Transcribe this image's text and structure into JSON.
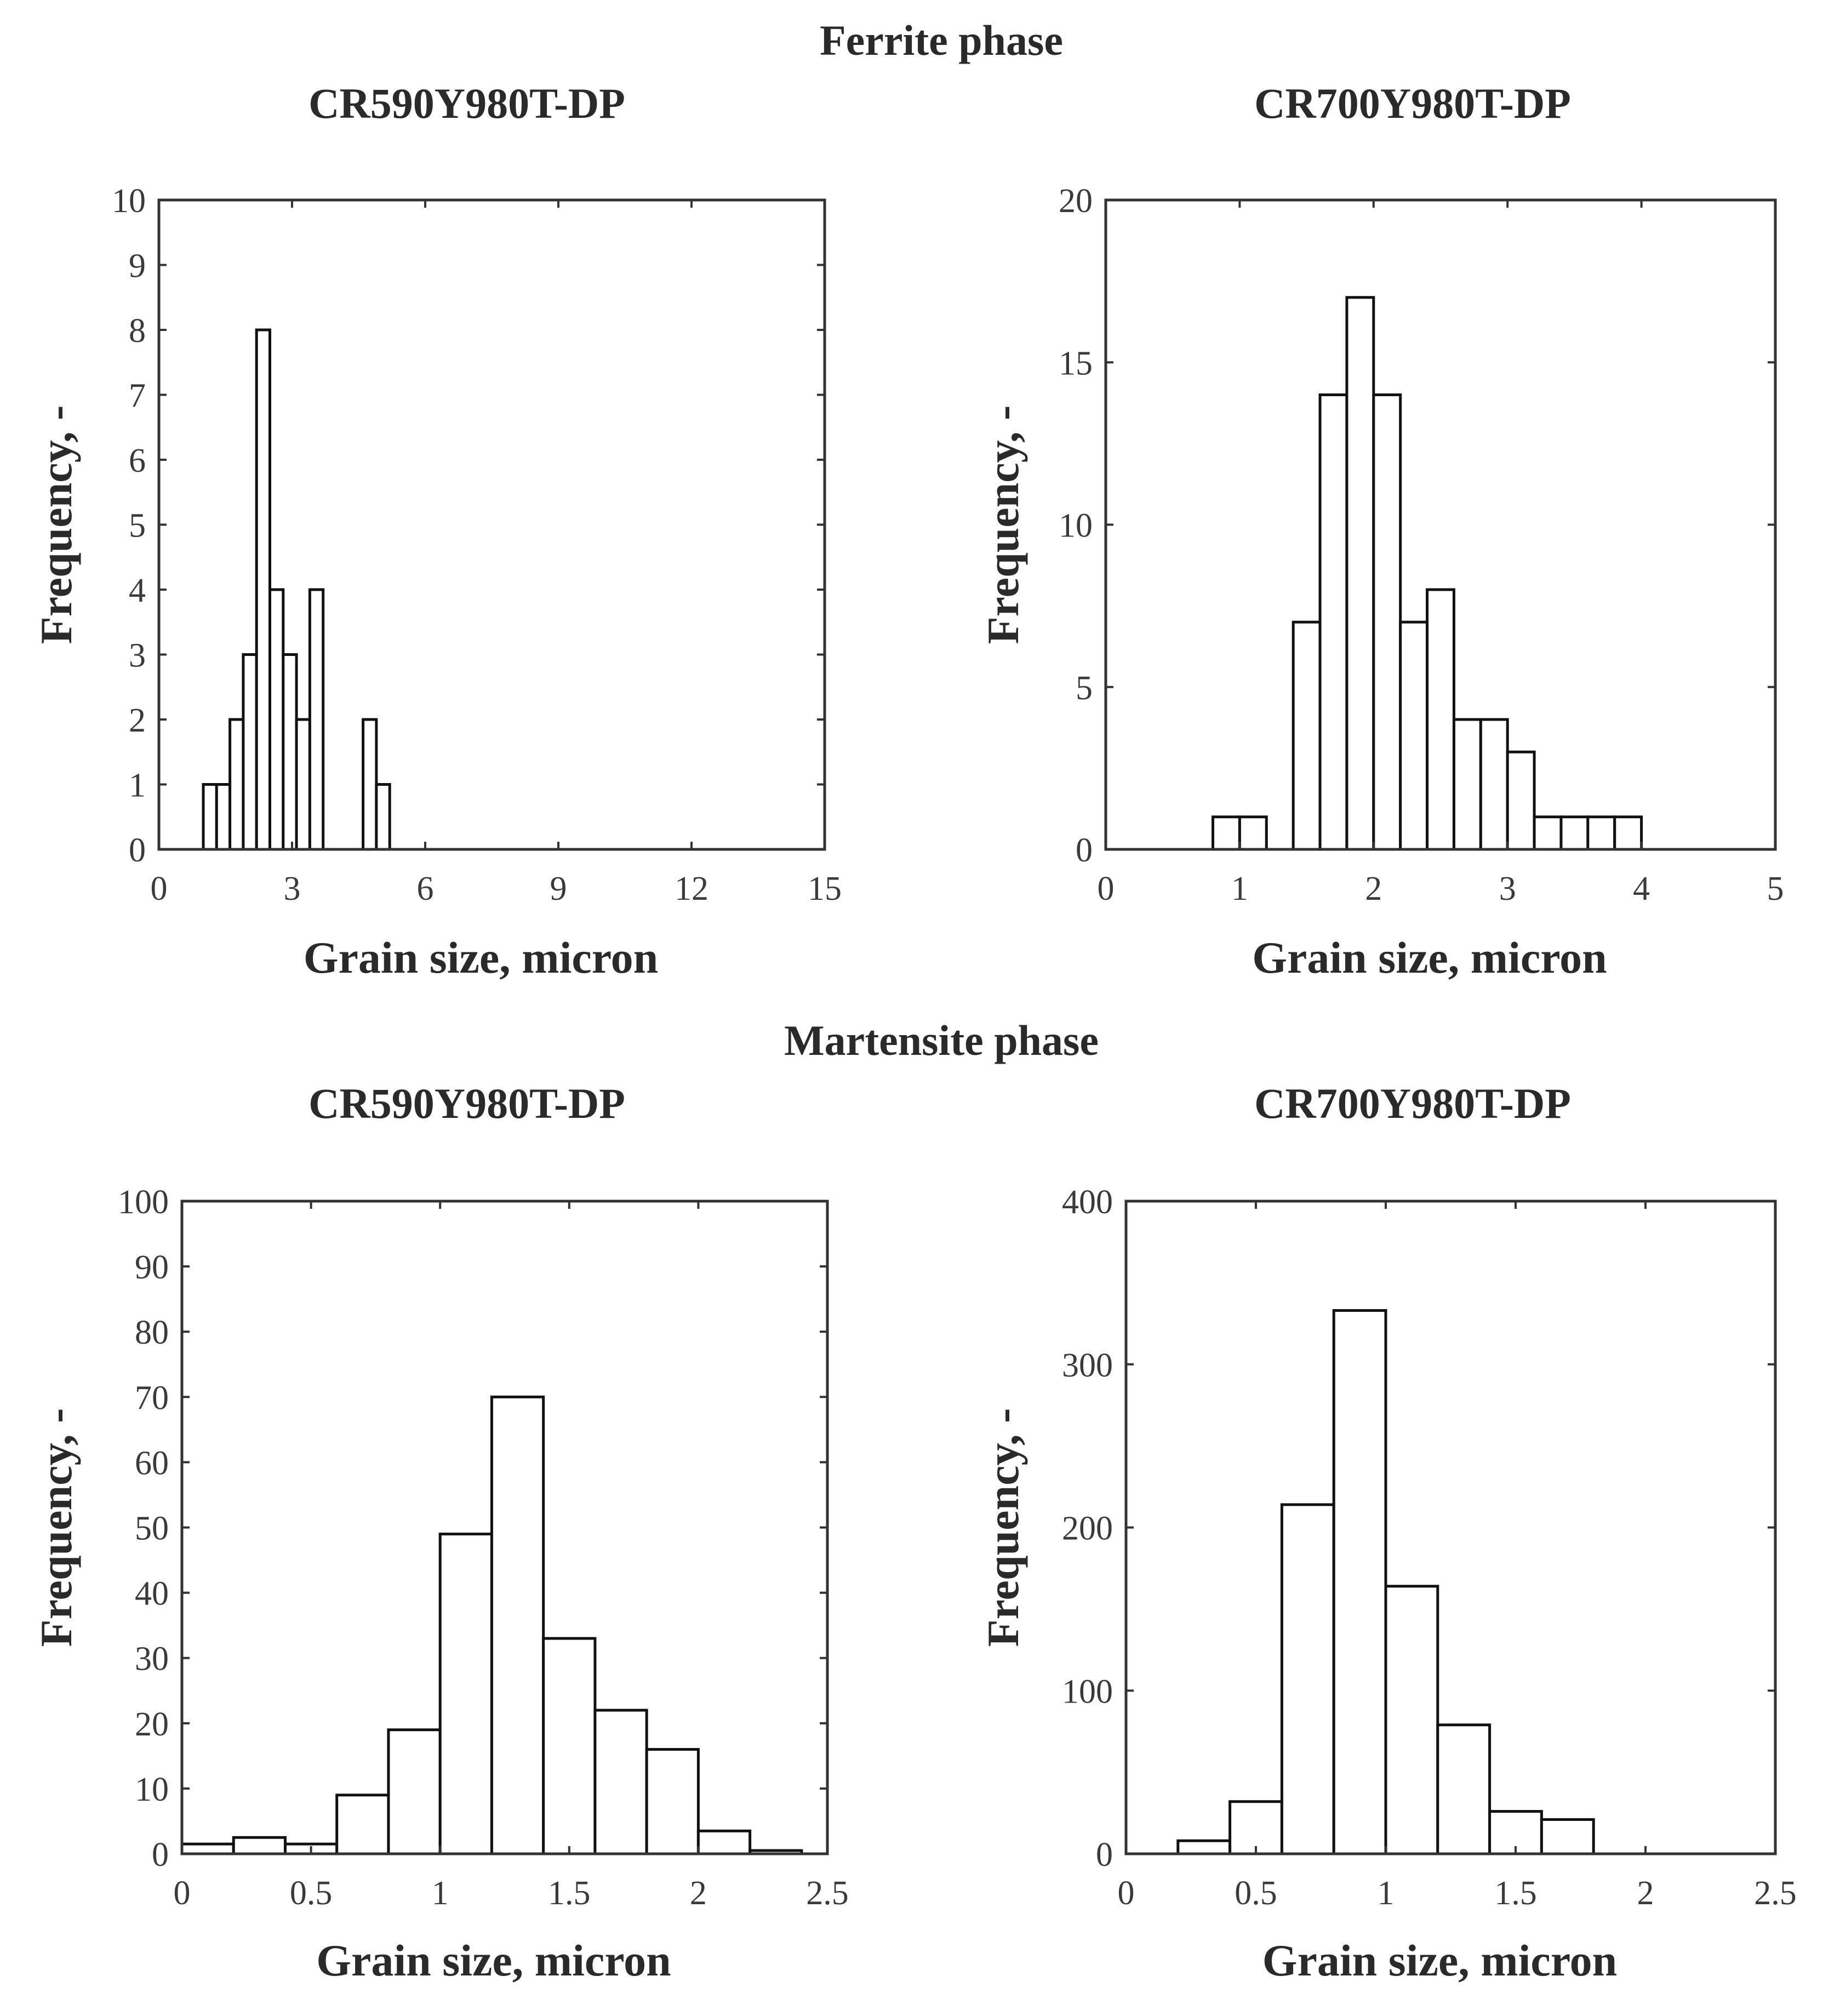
{
  "sections": {
    "ferrite_title": "Ferrite phase",
    "martensite_title": "Martensite phase"
  },
  "chart_data": [
    {
      "type": "bar",
      "id": "ferrite-cr590",
      "section": "Ferrite phase",
      "title": "CR590Y980T-DP",
      "xlabel": "Grain size, micron",
      "ylabel": "Frequency, -",
      "xlim": [
        0,
        15
      ],
      "ylim": [
        0,
        10
      ],
      "xticks": [
        "0",
        "3",
        "6",
        "9",
        "12",
        "15"
      ],
      "yticks": [
        "0",
        "1",
        "2",
        "3",
        "4",
        "5",
        "6",
        "7",
        "8",
        "9",
        "10"
      ],
      "xtick_values": [
        0,
        3,
        6,
        9,
        12,
        15
      ],
      "ytick_values": [
        0,
        1,
        2,
        3,
        4,
        5,
        6,
        7,
        8,
        9,
        10
      ],
      "bin_width": 0.3,
      "bin_starts": [
        1.0,
        1.3,
        1.6,
        1.9,
        2.2,
        2.5,
        2.8,
        3.1,
        3.4,
        4.6,
        4.9
      ],
      "values": [
        1,
        1,
        2,
        3,
        8,
        4,
        3,
        2,
        4,
        2,
        1
      ],
      "grid": false
    },
    {
      "type": "bar",
      "id": "ferrite-cr700",
      "section": "Ferrite phase",
      "title": "CR700Y980T-DP",
      "xlabel": "Grain size, micron",
      "ylabel": "Frequency, -",
      "xlim": [
        0,
        5
      ],
      "ylim": [
        0,
        20
      ],
      "xticks": [
        "0",
        "1",
        "2",
        "3",
        "4",
        "5"
      ],
      "yticks": [
        "0",
        "5",
        "10",
        "15",
        "20"
      ],
      "xtick_values": [
        0,
        1,
        2,
        3,
        4,
        5
      ],
      "ytick_values": [
        0,
        5,
        10,
        15,
        20
      ],
      "bin_width": 0.2,
      "bin_starts": [
        0.8,
        1.0,
        1.4,
        1.6,
        1.8,
        2.0,
        2.2,
        2.4,
        2.6,
        2.8,
        3.0,
        3.2,
        3.4,
        3.6,
        3.8
      ],
      "values": [
        1,
        1,
        7,
        14,
        17,
        14,
        7,
        8,
        4,
        4,
        3,
        1,
        1,
        1,
        1
      ],
      "grid": false
    },
    {
      "type": "bar",
      "id": "martensite-cr590",
      "section": "Martensite phase",
      "title": "CR590Y980T-DP",
      "xlabel": "Grain size, micron",
      "ylabel": "Frequency, -",
      "xlim": [
        0,
        2.5
      ],
      "ylim": [
        0,
        100
      ],
      "xticks": [
        "0",
        "0.5",
        "1",
        "1.5",
        "2",
        "2.5"
      ],
      "yticks": [
        "0",
        "10",
        "20",
        "30",
        "40",
        "50",
        "60",
        "70",
        "80",
        "90",
        "100"
      ],
      "xtick_values": [
        0,
        0.5,
        1,
        1.5,
        2,
        2.5
      ],
      "ytick_values": [
        0,
        10,
        20,
        30,
        40,
        50,
        60,
        70,
        80,
        90,
        100
      ],
      "bin_width": 0.2,
      "bin_starts": [
        0.0,
        0.2,
        0.4,
        0.6,
        0.8,
        1.0,
        1.2,
        1.4,
        1.6,
        1.8,
        2.0,
        2.2
      ],
      "values": [
        1.5,
        2.5,
        1.5,
        9,
        19,
        49,
        70,
        33,
        22,
        16,
        3.5,
        0.5
      ],
      "grid": false
    },
    {
      "type": "bar",
      "id": "martensite-cr700",
      "section": "Martensite phase",
      "title": "CR700Y980T-DP",
      "xlabel": "Grain size, micron",
      "ylabel": "Frequency, -",
      "xlim": [
        0,
        2.5
      ],
      "ylim": [
        0,
        400
      ],
      "xticks": [
        "0",
        "0.5",
        "1",
        "1.5",
        "2",
        "2.5"
      ],
      "yticks": [
        "0",
        "100",
        "200",
        "300",
        "400"
      ],
      "xtick_values": [
        0,
        0.5,
        1,
        1.5,
        2,
        2.5
      ],
      "ytick_values": [
        0,
        100,
        200,
        300,
        400
      ],
      "bin_width": 0.2,
      "bin_starts": [
        0.2,
        0.4,
        0.6,
        0.8,
        1.0,
        1.2,
        1.4,
        1.6
      ],
      "values": [
        8,
        32,
        214,
        333,
        164,
        79,
        26,
        21
      ],
      "grid": false
    }
  ]
}
